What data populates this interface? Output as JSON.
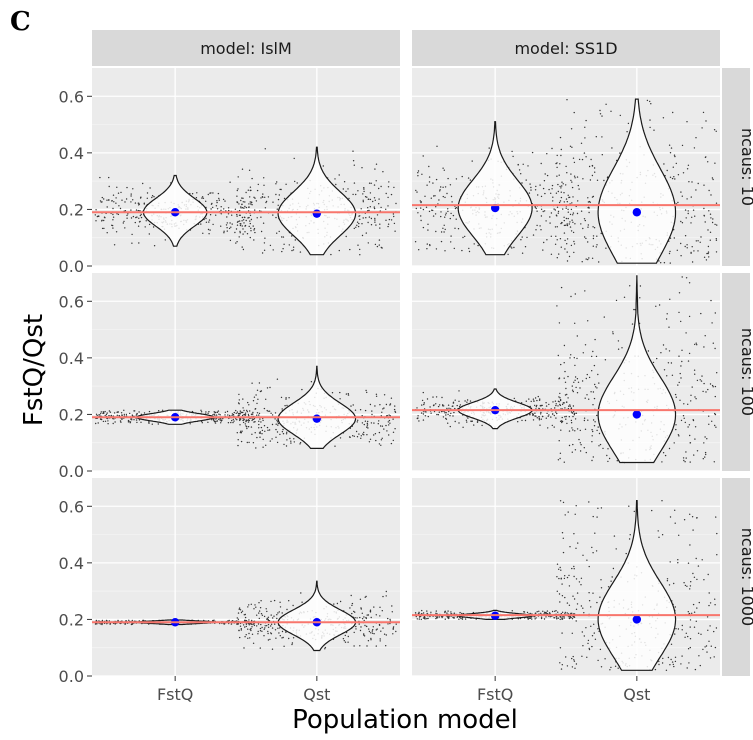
{
  "figure": {
    "panel_letter": "C",
    "xlabel": "Population model",
    "ylabel": "FstQ/Qst"
  },
  "colors": {
    "panel_bg": "#ebebeb",
    "grid_major": "#ffffff",
    "strip_bg": "#d9d9d9",
    "reference_line": "#f8766d",
    "mean_point": "#0000ff",
    "violin_fill": "#ffffff",
    "violin_stroke": "#1a1a1a",
    "jitter": "#333333"
  },
  "chart_data": {
    "type": "violin",
    "facet_columns": [
      "model: IslM",
      "model: SS1D"
    ],
    "facet_rows": [
      "ncaus: 10",
      "ncaus: 100",
      "ncaus: 1000"
    ],
    "categories": [
      "FstQ",
      "Qst"
    ],
    "y_ticks": [
      "0.0",
      "0.2",
      "0.4",
      "0.6"
    ],
    "ylim": [
      0.0,
      0.7
    ],
    "grid": true,
    "panels": [
      {
        "column": "model: IslM",
        "row": "ncaus: 10",
        "reference": 0.19,
        "groups": [
          {
            "category": "FstQ",
            "mean": 0.19,
            "min": 0.07,
            "max": 0.32,
            "spread": 0.045,
            "halfwidth": 0.36
          },
          {
            "category": "Qst",
            "mean": 0.185,
            "min": 0.04,
            "max": 0.42,
            "spread": 0.07,
            "halfwidth": 0.44
          }
        ]
      },
      {
        "column": "model: SS1D",
        "row": "ncaus: 10",
        "reference": 0.215,
        "groups": [
          {
            "category": "FstQ",
            "mean": 0.205,
            "min": 0.04,
            "max": 0.51,
            "spread": 0.09,
            "halfwidth": 0.42
          },
          {
            "category": "Qst",
            "mean": 0.19,
            "min": 0.01,
            "max": 0.59,
            "spread": 0.14,
            "halfwidth": 0.44
          }
        ]
      },
      {
        "column": "model: IslM",
        "row": "ncaus: 100",
        "reference": 0.19,
        "groups": [
          {
            "category": "FstQ",
            "mean": 0.19,
            "min": 0.165,
            "max": 0.215,
            "spread": 0.012,
            "halfwidth": 0.44
          },
          {
            "category": "Qst",
            "mean": 0.185,
            "min": 0.08,
            "max": 0.37,
            "spread": 0.05,
            "halfwidth": 0.44
          }
        ]
      },
      {
        "column": "model: SS1D",
        "row": "ncaus: 100",
        "reference": 0.215,
        "groups": [
          {
            "category": "FstQ",
            "mean": 0.215,
            "min": 0.15,
            "max": 0.29,
            "spread": 0.025,
            "halfwidth": 0.42
          },
          {
            "category": "Qst",
            "mean": 0.2,
            "min": 0.03,
            "max": 0.69,
            "spread": 0.12,
            "halfwidth": 0.44
          }
        ]
      },
      {
        "column": "model: IslM",
        "row": "ncaus: 1000",
        "reference": 0.19,
        "groups": [
          {
            "category": "FstQ",
            "mean": 0.19,
            "min": 0.182,
            "max": 0.198,
            "spread": 0.004,
            "halfwidth": 0.44
          },
          {
            "category": "Qst",
            "mean": 0.19,
            "min": 0.09,
            "max": 0.335,
            "spread": 0.04,
            "halfwidth": 0.44
          }
        ]
      },
      {
        "column": "model: SS1D",
        "row": "ncaus: 1000",
        "reference": 0.215,
        "groups": [
          {
            "category": "FstQ",
            "mean": 0.213,
            "min": 0.2,
            "max": 0.232,
            "spread": 0.007,
            "halfwidth": 0.42
          },
          {
            "category": "Qst",
            "mean": 0.2,
            "min": 0.02,
            "max": 0.62,
            "spread": 0.12,
            "halfwidth": 0.44
          }
        ]
      }
    ]
  }
}
